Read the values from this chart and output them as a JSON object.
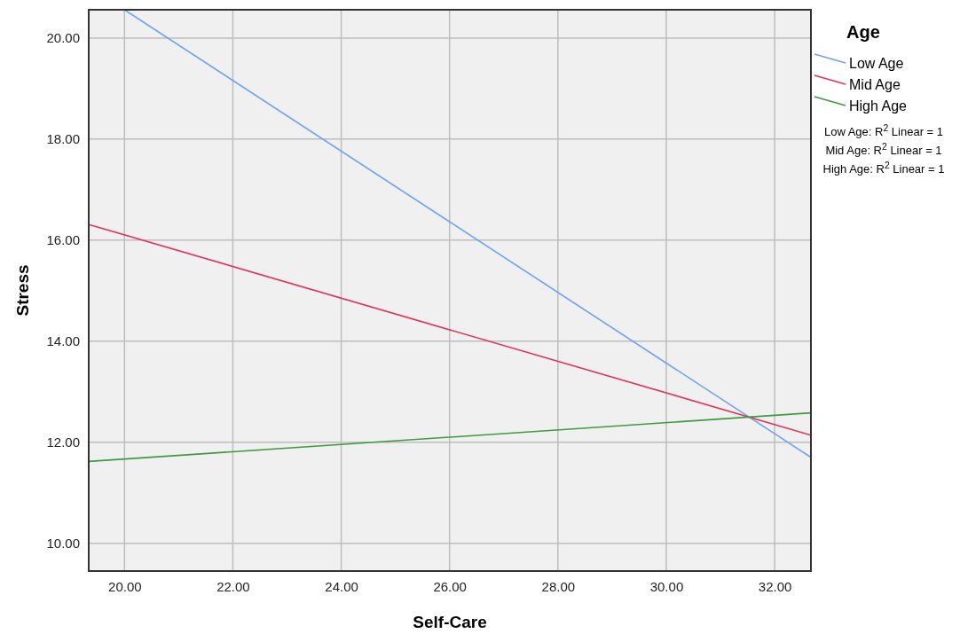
{
  "chart_data": {
    "type": "line",
    "xlabel": "Self-Care",
    "ylabel": "Stress",
    "legend_title": "Age",
    "xlim": [
      19.34,
      32.67
    ],
    "ylim": [
      9.45,
      20.56
    ],
    "xticks": [
      {
        "value": 20,
        "label": "20.00"
      },
      {
        "value": 22,
        "label": "22.00"
      },
      {
        "value": 24,
        "label": "24.00"
      },
      {
        "value": 26,
        "label": "26.00"
      },
      {
        "value": 28,
        "label": "28.00"
      },
      {
        "value": 30,
        "label": "30.00"
      },
      {
        "value": 32,
        "label": "32.00"
      }
    ],
    "yticks": [
      {
        "value": 10,
        "label": "10.00"
      },
      {
        "value": 12,
        "label": "12.00"
      },
      {
        "value": 14,
        "label": "14.00"
      },
      {
        "value": 16,
        "label": "16.00"
      },
      {
        "value": 18,
        "label": "18.00"
      },
      {
        "value": 20,
        "label": "20.00"
      }
    ],
    "grid": true,
    "legend": "top right",
    "marker": "none",
    "line_style": "solid",
    "series": [
      {
        "name": "Low Age",
        "color": "#6fa3ef",
        "x": [
          20,
          32.67
        ],
        "values": [
          20.56,
          11.7
        ]
      },
      {
        "name": "Mid Age",
        "color": "#e0355a",
        "x": [
          19.34,
          32.67
        ],
        "values": [
          16.31,
          12.14
        ]
      },
      {
        "name": "High Age",
        "color": "#3f9a3f",
        "x": [
          19.34,
          32.67
        ],
        "values": [
          11.62,
          12.58
        ]
      }
    ],
    "annotations": [
      "Low Age: R$^{2}$ Linear = 1",
      "Mid Age: R$^{2}$ Linear = 1",
      "High Age: R$^{2}$ Linear = 1"
    ]
  }
}
